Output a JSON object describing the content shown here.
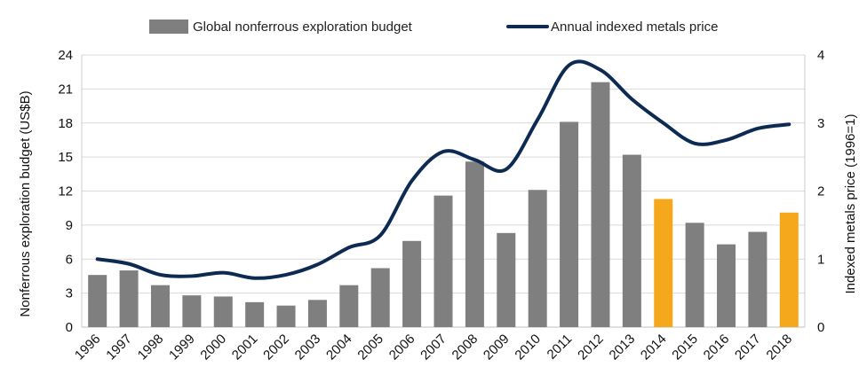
{
  "chart_data": {
    "type": "bar+line",
    "categories": [
      "1996",
      "1997",
      "1998",
      "1999",
      "2000",
      "2001",
      "2002",
      "2003",
      "2004",
      "2005",
      "2006",
      "2007",
      "2008",
      "2009",
      "2010",
      "2011",
      "2012",
      "2013",
      "2014",
      "2015",
      "2016",
      "2017",
      "2018"
    ],
    "series": [
      {
        "name": "Global nonferrous exploration budget",
        "type": "bar",
        "axis": "left",
        "values": [
          4.6,
          5.0,
          3.7,
          2.8,
          2.7,
          2.2,
          1.9,
          2.4,
          3.7,
          5.2,
          7.6,
          11.6,
          14.6,
          8.3,
          12.1,
          18.1,
          21.6,
          15.2,
          11.3,
          9.2,
          7.3,
          8.4,
          10.1
        ],
        "colors": {
          "default": "#7f7f7f",
          "highlight": "#f5a81c"
        },
        "highlight_categories": [
          "2014",
          "2018"
        ]
      },
      {
        "name": "Annual indexed metals price",
        "type": "line",
        "axis": "right",
        "values": [
          1.0,
          0.93,
          0.77,
          0.75,
          0.8,
          0.72,
          0.77,
          0.92,
          1.17,
          1.35,
          2.15,
          2.58,
          2.46,
          2.32,
          3.05,
          3.85,
          3.78,
          3.35,
          3.0,
          2.7,
          2.75,
          2.92,
          2.98
        ],
        "color": "#0d2a52"
      }
    ],
    "yaxis_left": {
      "label": "Nonferrous exploration budget (US$B)",
      "range": [
        0,
        24
      ],
      "ticks": [
        0,
        3,
        6,
        9,
        12,
        15,
        18,
        21,
        24
      ]
    },
    "yaxis_right": {
      "label": "Indexed metals price  (1996=1)",
      "range": [
        0,
        4
      ],
      "ticks": [
        0,
        1,
        2,
        3,
        4
      ]
    },
    "xlabel": "",
    "title": "",
    "grid": "horizontal",
    "legend_position": "top"
  }
}
